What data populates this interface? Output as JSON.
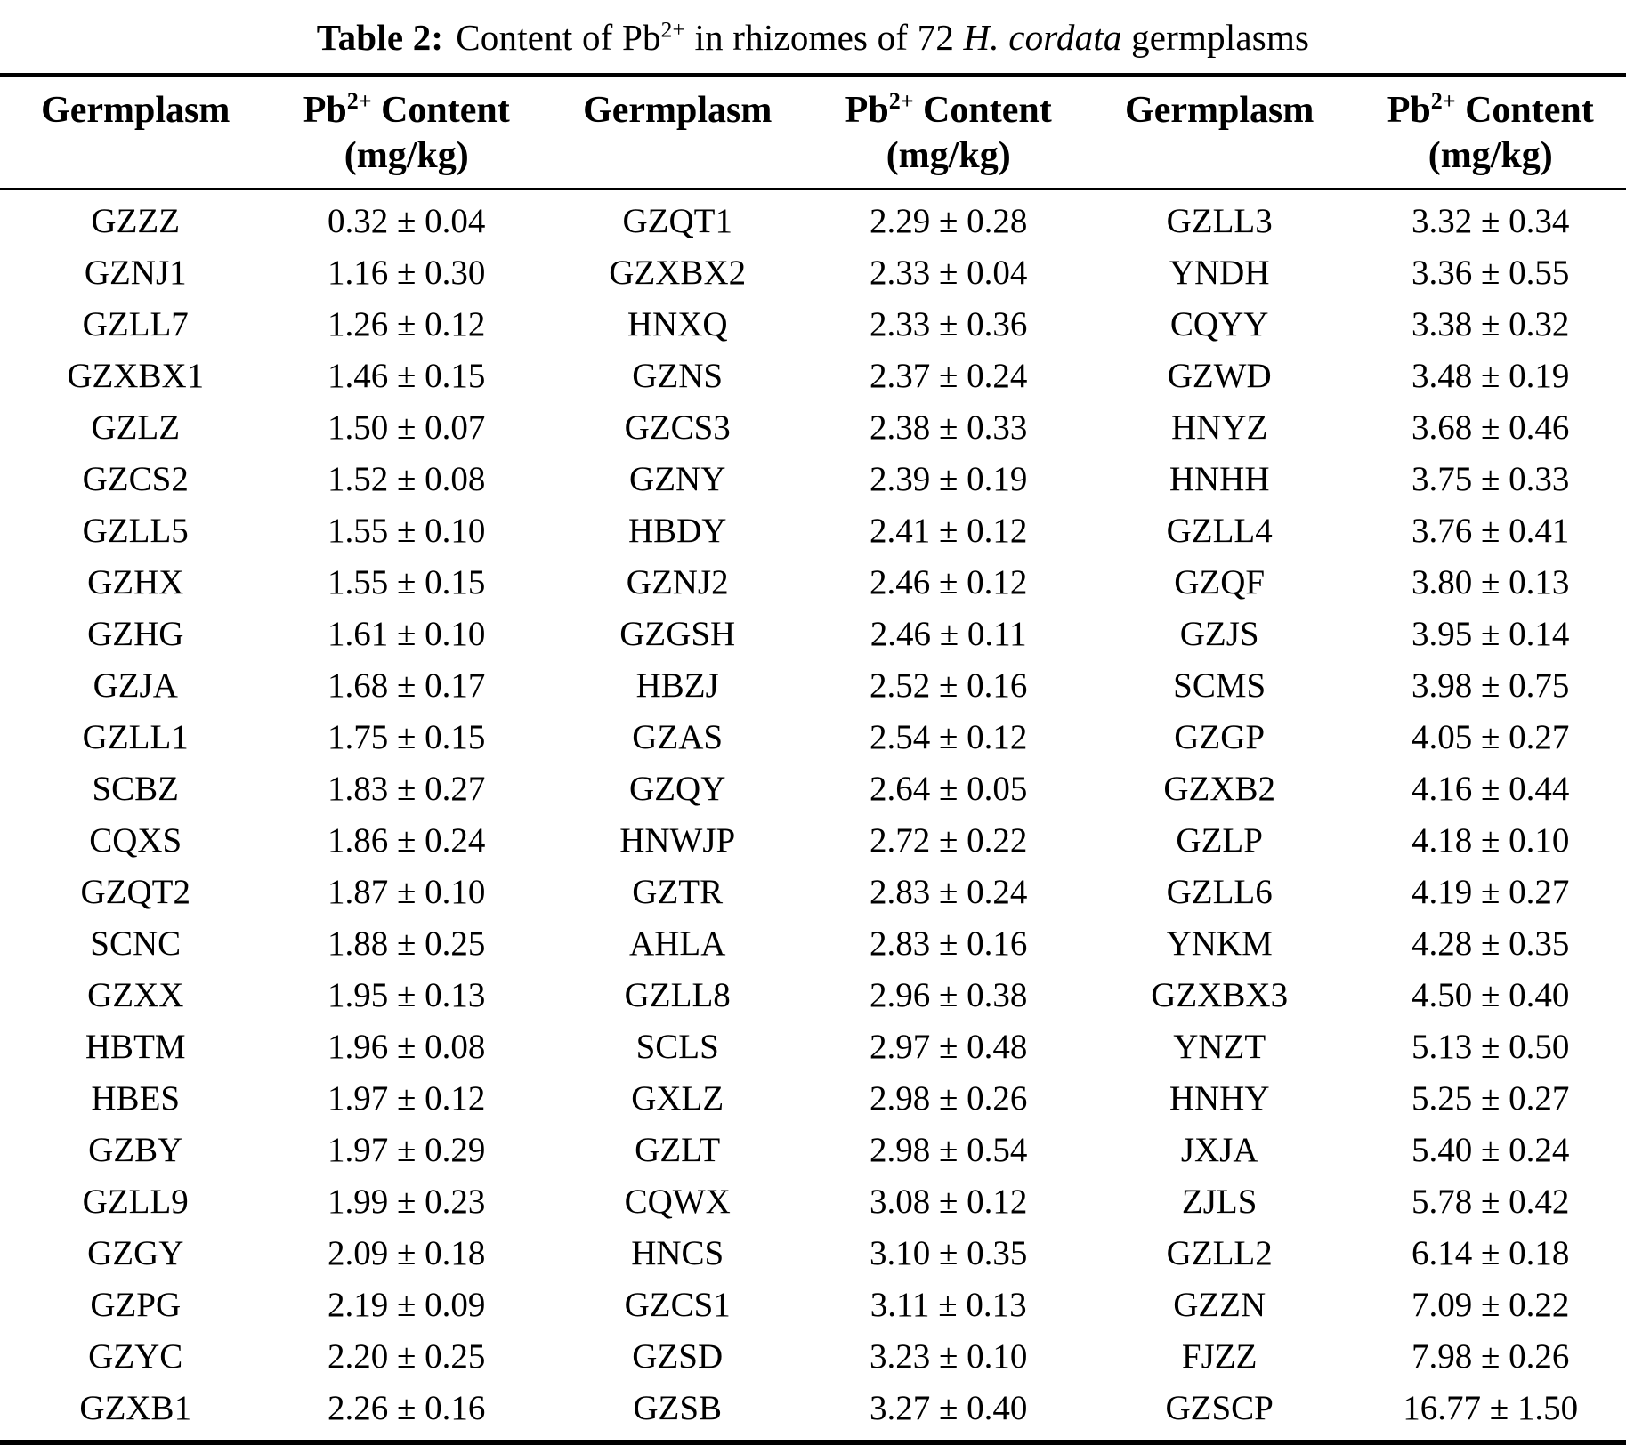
{
  "table": {
    "title": {
      "label": "Table 2:",
      "segment_1": "Content of Pb",
      "superscript": "2+",
      "segment_2": " in rhizomes of 72 ",
      "italic_species": "H. cordata",
      "segment_3": " germplasms"
    },
    "header": {
      "germplasm": "Germplasm",
      "content_base": "Pb",
      "content_sup": "2+",
      "content_rest": " Content",
      "content_unit": "(mg/kg)"
    },
    "groups": [
      {
        "rows": [
          {
            "germplasm": "GZZZ",
            "content": "0.32 ± 0.04"
          },
          {
            "germplasm": "GZNJ1",
            "content": "1.16 ± 0.30"
          },
          {
            "germplasm": "GZLL7",
            "content": "1.26 ± 0.12"
          },
          {
            "germplasm": "GZXBX1",
            "content": "1.46 ± 0.15"
          },
          {
            "germplasm": "GZLZ",
            "content": "1.50 ± 0.07"
          },
          {
            "germplasm": "GZCS2",
            "content": "1.52 ± 0.08"
          },
          {
            "germplasm": "GZLL5",
            "content": "1.55 ± 0.10"
          },
          {
            "germplasm": "GZHX",
            "content": "1.55 ± 0.15"
          },
          {
            "germplasm": "GZHG",
            "content": "1.61 ± 0.10"
          },
          {
            "germplasm": "GZJA",
            "content": "1.68 ± 0.17"
          },
          {
            "germplasm": "GZLL1",
            "content": "1.75 ± 0.15"
          },
          {
            "germplasm": "SCBZ",
            "content": "1.83 ± 0.27"
          },
          {
            "germplasm": "CQXS",
            "content": "1.86 ± 0.24"
          },
          {
            "germplasm": "GZQT2",
            "content": "1.87 ± 0.10"
          },
          {
            "germplasm": "SCNC",
            "content": "1.88 ± 0.25"
          },
          {
            "germplasm": "GZXX",
            "content": "1.95 ± 0.13"
          },
          {
            "germplasm": "HBTM",
            "content": "1.96 ± 0.08"
          },
          {
            "germplasm": "HBES",
            "content": "1.97 ± 0.12"
          },
          {
            "germplasm": "GZBY",
            "content": "1.97 ± 0.29"
          },
          {
            "germplasm": "GZLL9",
            "content": "1.99 ± 0.23"
          },
          {
            "germplasm": "GZGY",
            "content": "2.09 ± 0.18"
          },
          {
            "germplasm": "GZPG",
            "content": "2.19 ± 0.09"
          },
          {
            "germplasm": "GZYC",
            "content": "2.20 ± 0.25"
          },
          {
            "germplasm": "GZXB1",
            "content": "2.26 ± 0.16"
          }
        ]
      },
      {
        "rows": [
          {
            "germplasm": "GZQT1",
            "content": "2.29 ± 0.28"
          },
          {
            "germplasm": "GZXBX2",
            "content": "2.33 ± 0.04"
          },
          {
            "germplasm": "HNXQ",
            "content": "2.33 ± 0.36"
          },
          {
            "germplasm": "GZNS",
            "content": "2.37 ± 0.24"
          },
          {
            "germplasm": "GZCS3",
            "content": "2.38 ± 0.33"
          },
          {
            "germplasm": "GZNY",
            "content": "2.39 ± 0.19"
          },
          {
            "germplasm": "HBDY",
            "content": "2.41 ± 0.12"
          },
          {
            "germplasm": "GZNJ2",
            "content": "2.46 ± 0.12"
          },
          {
            "germplasm": "GZGSH",
            "content": "2.46 ± 0.11"
          },
          {
            "germplasm": "HBZJ",
            "content": "2.52 ± 0.16"
          },
          {
            "germplasm": "GZAS",
            "content": "2.54 ± 0.12"
          },
          {
            "germplasm": "GZQY",
            "content": "2.64 ± 0.05"
          },
          {
            "germplasm": "HNWJP",
            "content": "2.72 ± 0.22"
          },
          {
            "germplasm": "GZTR",
            "content": "2.83 ± 0.24"
          },
          {
            "germplasm": "AHLA",
            "content": "2.83 ± 0.16"
          },
          {
            "germplasm": "GZLL8",
            "content": "2.96 ± 0.38"
          },
          {
            "germplasm": "SCLS",
            "content": "2.97 ± 0.48"
          },
          {
            "germplasm": "GXLZ",
            "content": "2.98 ± 0.26"
          },
          {
            "germplasm": "GZLT",
            "content": "2.98 ± 0.54"
          },
          {
            "germplasm": "CQWX",
            "content": "3.08 ± 0.12"
          },
          {
            "germplasm": "HNCS",
            "content": "3.10 ± 0.35"
          },
          {
            "germplasm": "GZCS1",
            "content": "3.11 ± 0.13"
          },
          {
            "germplasm": "GZSD",
            "content": "3.23 ± 0.10"
          },
          {
            "germplasm": "GZSB",
            "content": "3.27 ± 0.40"
          }
        ]
      },
      {
        "rows": [
          {
            "germplasm": "GZLL3",
            "content": "3.32 ± 0.34"
          },
          {
            "germplasm": "YNDH",
            "content": "3.36 ± 0.55"
          },
          {
            "germplasm": "CQYY",
            "content": "3.38 ± 0.32"
          },
          {
            "germplasm": "GZWD",
            "content": "3.48 ± 0.19"
          },
          {
            "germplasm": "HNYZ",
            "content": "3.68 ± 0.46"
          },
          {
            "germplasm": "HNHH",
            "content": "3.75 ± 0.33"
          },
          {
            "germplasm": "GZLL4",
            "content": "3.76 ± 0.41"
          },
          {
            "germplasm": "GZQF",
            "content": "3.80 ± 0.13"
          },
          {
            "germplasm": "GZJS",
            "content": "3.95 ± 0.14"
          },
          {
            "germplasm": "SCMS",
            "content": "3.98 ± 0.75"
          },
          {
            "germplasm": "GZGP",
            "content": "4.05 ± 0.27"
          },
          {
            "germplasm": "GZXB2",
            "content": "4.16 ± 0.44"
          },
          {
            "germplasm": "GZLP",
            "content": "4.18 ± 0.10"
          },
          {
            "germplasm": "GZLL6",
            "content": "4.19 ± 0.27"
          },
          {
            "germplasm": "YNKM",
            "content": "4.28 ± 0.35"
          },
          {
            "germplasm": "GZXBX3",
            "content": "4.50 ± 0.40"
          },
          {
            "germplasm": "YNZT",
            "content": "5.13 ± 0.50"
          },
          {
            "germplasm": "HNHY",
            "content": "5.25 ± 0.27"
          },
          {
            "germplasm": "JXJA",
            "content": "5.40 ± 0.24"
          },
          {
            "germplasm": "ZJLS",
            "content": "5.78 ± 0.42"
          },
          {
            "germplasm": "GZLL2",
            "content": "6.14 ± 0.18"
          },
          {
            "germplasm": "GZZN",
            "content": "7.09 ± 0.22"
          },
          {
            "germplasm": "FJZZ",
            "content": "7.98 ± 0.26"
          },
          {
            "germplasm": "GZSCP",
            "content": "16.77 ± 1.50"
          }
        ]
      }
    ]
  }
}
